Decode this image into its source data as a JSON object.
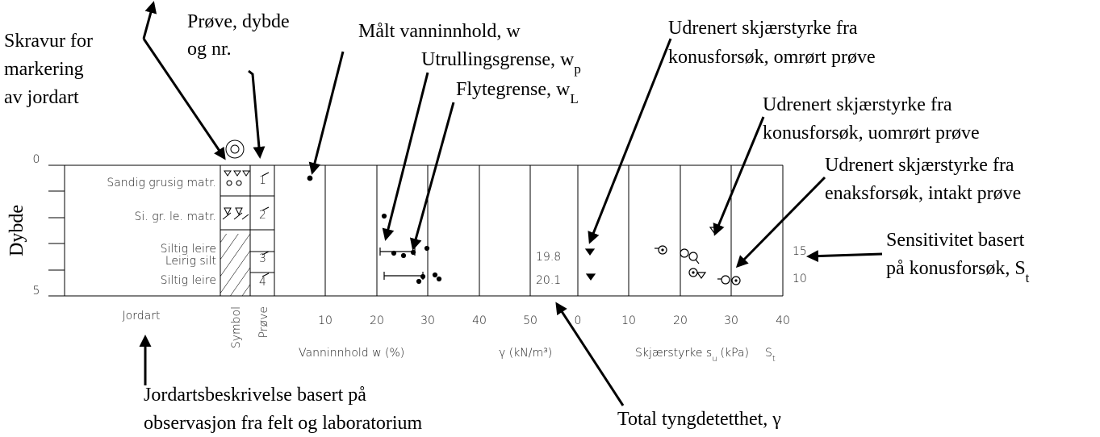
{
  "annotations": {
    "hatch": [
      "Skravur for",
      "markering",
      "av jordart"
    ],
    "sample": [
      "Prøve, dybde",
      "og nr."
    ],
    "water": "Målt vanninnhold, w",
    "plastic": {
      "text": "Utrullingsgrense, w",
      "sub": "p"
    },
    "liquid": {
      "text": "Flytegrense, w",
      "sub": "L"
    },
    "remoulded": [
      "Udrenert skjærstyrke fra",
      "konusforsøk, omrørt prøve"
    ],
    "undisturbed": [
      "Udrenert skjærstyrke fra",
      "konusforsøk, uomrørt prøve"
    ],
    "unconfined": [
      "Udrenert skjærstyrke fra",
      "enaksforsøk, intakt prøve"
    ],
    "sensitivity": {
      "lines": [
        "Sensitivitet basert",
        "på konusforsøk, S"
      ],
      "sub": "t"
    },
    "description": [
      "Jordartsbeskrivelse basert på",
      "observasjon fra felt og laboratorium"
    ],
    "density": "Total tyngdetetthet, γ"
  },
  "log": {
    "depth_label": "Dybde",
    "depth_ticks": [
      "0",
      "5"
    ],
    "layers": [
      "Sandig grusig matr.",
      "Si. gr. le. matr.",
      "Siltig leire",
      "Leirig silt",
      "Siltig leire"
    ],
    "samples": [
      "1",
      "2",
      "3",
      "4"
    ],
    "density_values": [
      "19.8",
      "20.1"
    ],
    "sensitivity_values": [
      "15",
      "10"
    ],
    "columns": {
      "soil": "Jordart",
      "symbol": "Symbol",
      "sample": "Prøve",
      "water": "Vanninnhold w (%)",
      "density": "γ (kN/m³)",
      "shear": {
        "text": "Skjærstyrke s",
        "sub": "u",
        "unit": "(kPa)"
      },
      "sensitivity": {
        "text": "S",
        "sub": "t"
      }
    },
    "water_ticks": [
      "10",
      "20",
      "30",
      "40",
      "50"
    ],
    "shear_ticks": [
      "0",
      "10",
      "20",
      "30",
      "40"
    ]
  }
}
